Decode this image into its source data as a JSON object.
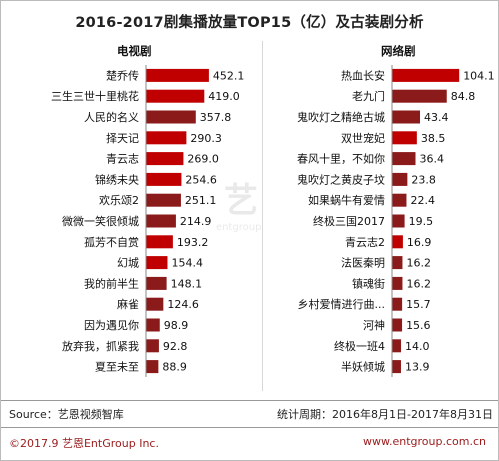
{
  "title": "2016-2017剧集播放量TOP15（亿）及古装剧分析",
  "footer": {
    "source": "Source：艺恩视频智库",
    "period": "统计周期：2016年8月1日-2017年8月31日",
    "copyright": "©2017.9  艺恩EntGroup Inc.",
    "website": "www.entgroup.com.cn"
  },
  "watermark": {
    "text": "艺",
    "subtext": "entgroup"
  },
  "colors": {
    "red": "#c00000",
    "darkred": "#8b1a1a",
    "footer_accent": "#9b1b1b"
  },
  "chart_data": [
    {
      "type": "bar",
      "orientation": "horizontal",
      "title": "电视剧",
      "categories": [
        "楚乔传",
        "三生三世十里桃花",
        "人民的名义",
        "择天记",
        "青云志",
        "锦绣未央",
        "欢乐颂2",
        "微微一笑很倾城",
        "孤芳不自赏",
        "幻城",
        "我的前半生",
        "麻雀",
        "因为遇见你",
        "放弃我，抓紧我",
        "夏至未至"
      ],
      "values": [
        452.1,
        419.0,
        357.8,
        290.3,
        269.0,
        254.6,
        251.1,
        214.9,
        193.2,
        154.4,
        148.1,
        124.6,
        98.9,
        92.8,
        88.9
      ],
      "value_labels": [
        "452.1",
        "419.0",
        "357.8",
        "290.3",
        "269.0",
        "254.6",
        "251.1",
        "214.9",
        "193.2",
        "154.4",
        "148.1",
        "124.6",
        "98.9",
        "92.8",
        "88.9"
      ],
      "bar_colors": [
        "#c00000",
        "#c00000",
        "#8b1a1a",
        "#c00000",
        "#c00000",
        "#c00000",
        "#8b1a1a",
        "#8b1a1a",
        "#c00000",
        "#c00000",
        "#8b1a1a",
        "#8b1a1a",
        "#8b1a1a",
        "#8b1a1a",
        "#8b1a1a"
      ],
      "xlim": [
        0,
        460
      ]
    },
    {
      "type": "bar",
      "orientation": "horizontal",
      "title": "网络剧",
      "categories": [
        "热血长安",
        "老九门",
        "鬼吹灯之精绝古城",
        "双世宠妃",
        "春风十里，不如你",
        "鬼吹灯之黄皮子坟",
        "如果蜗牛有爱情",
        "终极三国2017",
        "青云志2",
        "法医秦明",
        "镇魂街",
        "乡村爱情进行曲...",
        "河神",
        "终极一班4",
        "半妖倾城"
      ],
      "values": [
        104.1,
        84.8,
        43.4,
        38.5,
        36.4,
        23.8,
        22.4,
        19.5,
        16.9,
        16.2,
        16.2,
        15.7,
        15.6,
        14.0,
        13.9
      ],
      "value_labels": [
        "104.1",
        "84.8",
        "43.4",
        "38.5",
        "36.4",
        "23.8",
        "22.4",
        "19.5",
        "16.9",
        "16.2",
        "16.2",
        "15.7",
        "15.6",
        "14.0",
        "13.9"
      ],
      "bar_colors": [
        "#c00000",
        "#8b1a1a",
        "#8b1a1a",
        "#c00000",
        "#8b1a1a",
        "#8b1a1a",
        "#8b1a1a",
        "#8b1a1a",
        "#c00000",
        "#8b1a1a",
        "#8b1a1a",
        "#8b1a1a",
        "#8b1a1a",
        "#8b1a1a",
        "#8b1a1a"
      ],
      "xlim": [
        0,
        110
      ]
    }
  ]
}
